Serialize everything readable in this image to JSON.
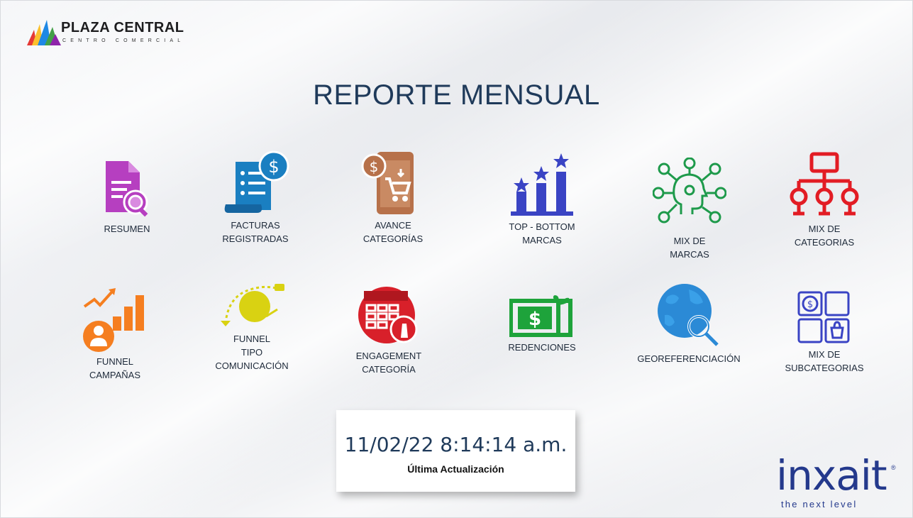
{
  "header": {
    "logo_name": "PLAZA CENTRAL",
    "logo_sub": "CENTRO COMERCIAL",
    "title": "REPORTE MENSUAL"
  },
  "tiles": [
    {
      "label": "RESUMEN",
      "icon": "document-search-icon",
      "color": "#b63fc0"
    },
    {
      "label": "FACTURAS\nREGISTRADAS",
      "icon": "invoice-icon",
      "color": "#1a7fc1"
    },
    {
      "label": "AVANCE\nCATEGORÍAS",
      "icon": "mobile-cart-icon",
      "color": "#b7714a"
    },
    {
      "label": "TOP - BOTTOM\nMARCAS",
      "icon": "bar-stars-icon",
      "color": "#3a44c4"
    },
    {
      "label": "MIX DE\nMARCAS",
      "icon": "head-network-icon",
      "color": "#1e9a4b"
    },
    {
      "label": "MIX DE\nCATEGORIAS",
      "icon": "hierarchy-icon",
      "color": "#e21c24"
    },
    {
      "label": "FUNNEL\nCAMPAÑAS",
      "icon": "growth-user-icon",
      "color": "#f57e20"
    },
    {
      "label": "FUNNEL\nTIPO\nCOMUNICACIÓN",
      "icon": "communication-icon",
      "color": "#d9d212"
    },
    {
      "label": "ENGAGEMENT\nCATEGORÍA",
      "icon": "calendar-edit-icon",
      "color": "#d8202a"
    },
    {
      "label": "REDENCIONES",
      "icon": "gift-card-icon",
      "color": "#1ea33b"
    },
    {
      "label": "GEOREFERENCIACIÓN",
      "icon": "globe-search-icon",
      "color": "#2b8ad6"
    },
    {
      "label": "MIX DE\nSUBCATEGORIAS",
      "icon": "grid-money-icon",
      "color": "#3a44c4"
    }
  ],
  "update": {
    "datetime": "11/02/22 8:14:14 a.m.",
    "caption": "Última Actualización"
  },
  "brand": {
    "name": "inxait",
    "reg": "®",
    "tagline": "the next level"
  }
}
